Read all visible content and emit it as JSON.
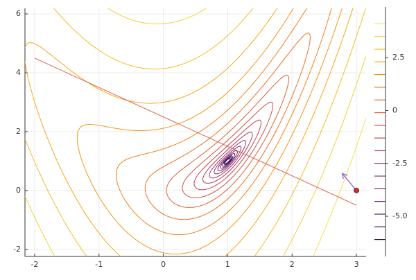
{
  "chart_data": {
    "type": "contour",
    "xlim": [
      -2.15,
      3.15
    ],
    "ylim": [
      -2.24,
      6.19
    ],
    "xticks": [
      -2,
      -1,
      0,
      1,
      2,
      3
    ],
    "yticks": [
      -2,
      0,
      2,
      4,
      6
    ],
    "grid": true,
    "levels": [
      -6.1,
      -5.5,
      -4.9,
      -4.3,
      -3.7,
      -3.1,
      -2.5,
      -1.9,
      -1.3,
      -0.7,
      -0.1,
      0.5,
      1.1,
      1.7,
      2.3,
      2.9,
      3.5,
      4.1
    ],
    "level_colors": [
      "#2c1050",
      "#3d1259",
      "#511a68",
      "#651f6e",
      "#7a256e",
      "#8e2b6a",
      "#a23163",
      "#b53859",
      "#c6414c",
      "#d54e3e",
      "#e25d2f",
      "#ec6e22",
      "#f28018",
      "#f69412",
      "#f8a713",
      "#f8bb1f",
      "#f6cf33",
      "#f2e34a"
    ],
    "colorbar": {
      "lim": [
        -6.9,
        4.9
      ],
      "ticks": [
        {
          "value": 2.5,
          "label": "2.5"
        },
        0,
        -2.5,
        {
          "value": -5,
          "label": "-5.0"
        }
      ]
    },
    "line": {
      "x": [
        -2,
        3
      ],
      "y": [
        4.5,
        -0.5
      ],
      "color": "#e0604a"
    },
    "point": {
      "x": 3,
      "y": 0,
      "color": "#d62728"
    },
    "arrow": {
      "x": [
        3,
        2.78
      ],
      "y": [
        0,
        0.58
      ],
      "color": "#a070d0"
    }
  }
}
